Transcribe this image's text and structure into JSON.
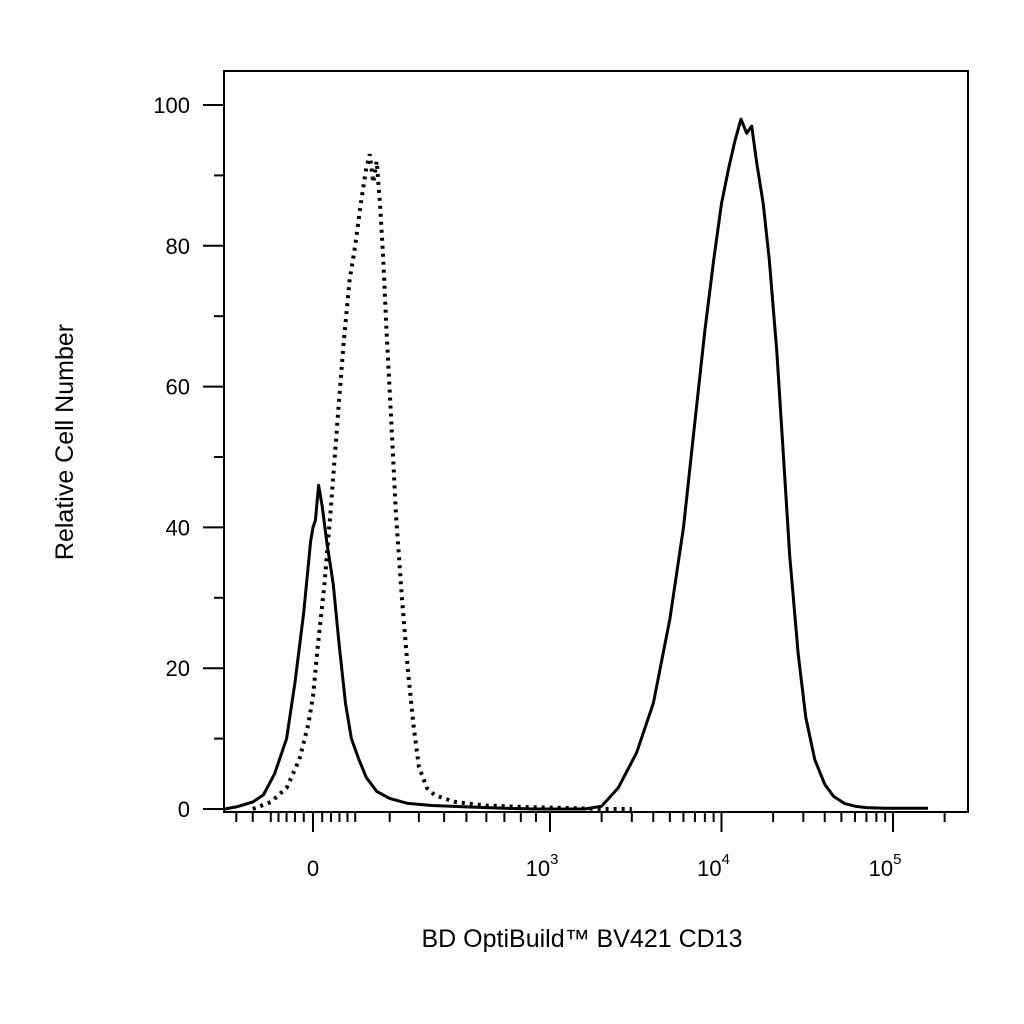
{
  "chart_data": {
    "type": "line",
    "xlabel": "BD OptiBuild™ BV421 CD13",
    "ylabel": "Relative Cell Number",
    "x_scale": "biexponential (log above 10^3)",
    "ylim": [
      0,
      100
    ],
    "y_ticks": [
      "0",
      "20",
      "40",
      "60",
      "80",
      "100"
    ],
    "x_ticks": [
      {
        "base": "0",
        "exp": ""
      },
      {
        "base": "10",
        "exp": "3"
      },
      {
        "base": "10",
        "exp": "4"
      },
      {
        "base": "10",
        "exp": "5"
      }
    ],
    "series": [
      {
        "style": "solid",
        "color": "#000000",
        "x": [
          -300,
          -200,
          -150,
          -120,
          -90,
          -60,
          -40,
          -20,
          -5,
          0,
          5,
          12,
          20,
          30,
          45,
          60,
          75,
          90,
          110,
          130,
          160,
          200,
          260,
          350,
          500,
          700,
          900,
          1200,
          1600,
          2000,
          2500,
          3200,
          4000,
          5000,
          6000,
          7000,
          8000,
          9000,
          10000,
          11000,
          12000,
          13000,
          14000,
          15000,
          16000,
          17500,
          19000,
          21000,
          23000,
          25000,
          28000,
          31000,
          35000,
          40000,
          45000,
          52000,
          60000,
          70000,
          90000,
          120000,
          160000
        ],
        "y": [
          0,
          0.3,
          1,
          2,
          5,
          10,
          18,
          28,
          38,
          40,
          41,
          46,
          43,
          38,
          32,
          23,
          15,
          10,
          7,
          4.5,
          2.5,
          1.5,
          0.8,
          0.5,
          0.3,
          0.1,
          0,
          0,
          0,
          0.4,
          3,
          8,
          15,
          27,
          40,
          55,
          68,
          78,
          86,
          91,
          95,
          98,
          96,
          97,
          92,
          86,
          78,
          65,
          50,
          36,
          22,
          13,
          7,
          3.5,
          1.8,
          0.8,
          0.4,
          0.2,
          0.1,
          0.1,
          0.1
        ]
      },
      {
        "style": "dotted",
        "color": "#000000",
        "x": [
          -150,
          -100,
          -60,
          -30,
          -10,
          0,
          10,
          25,
          40,
          55,
          70,
          85,
          100,
          115,
          130,
          140,
          150,
          160,
          170,
          180,
          190,
          205,
          220,
          240,
          260,
          280,
          300,
          330,
          360,
          400,
          450,
          500,
          600,
          800,
          1000,
          1500,
          2000,
          3000
        ],
        "y": [
          0,
          1,
          3,
          7,
          12,
          16,
          23,
          32,
          43,
          55,
          66,
          75,
          80,
          86,
          91,
          93,
          89,
          92,
          86,
          78,
          68,
          55,
          42,
          30,
          20,
          12,
          6,
          3,
          2,
          1.5,
          1,
          0.8,
          0.5,
          0.3,
          0.2,
          0.1,
          0,
          0
        ]
      }
    ]
  }
}
